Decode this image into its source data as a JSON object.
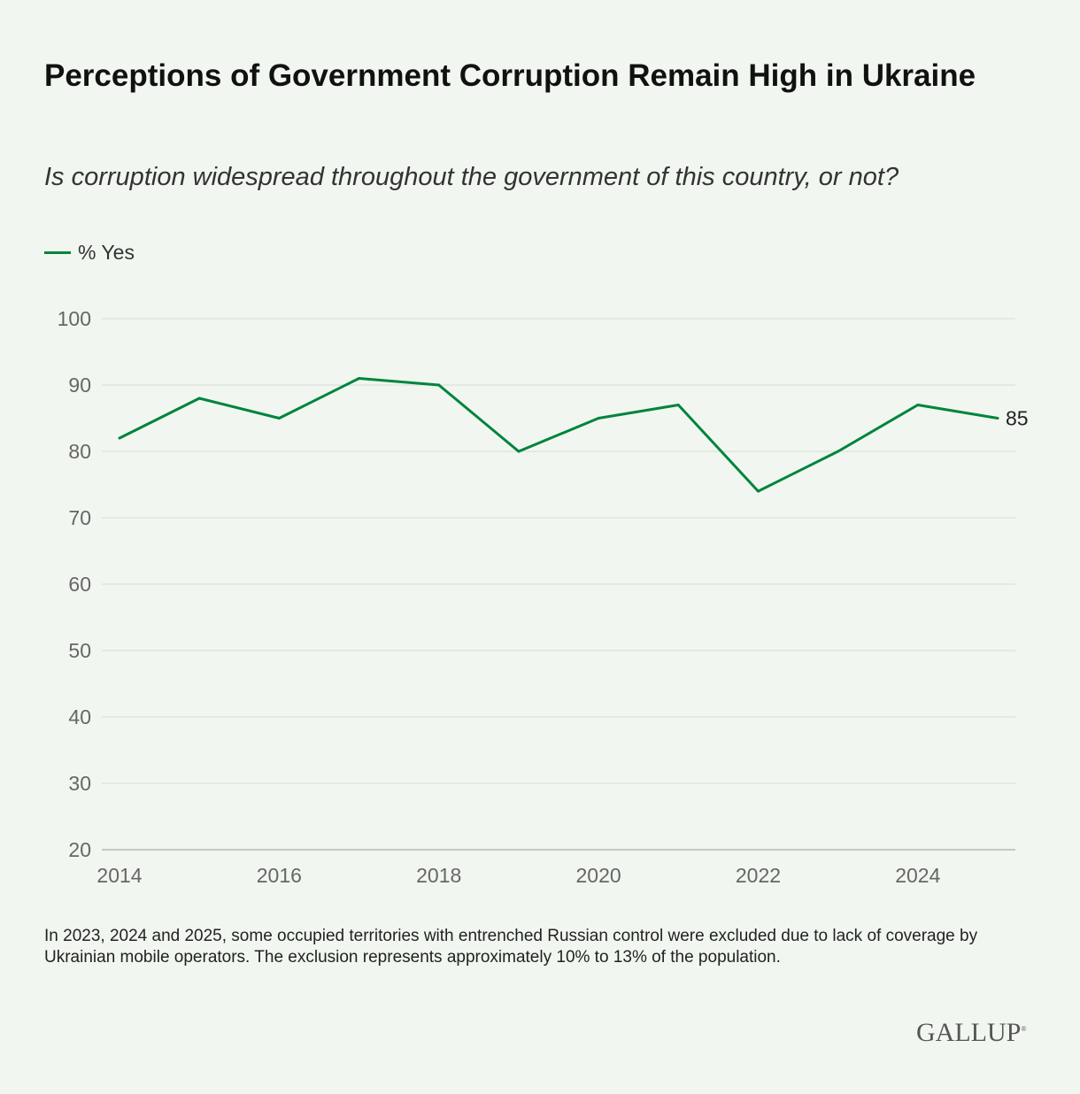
{
  "title": "Perceptions of Government Corruption Remain High in Ukraine",
  "subtitle": "Is corruption widespread throughout the government of this country, or not?",
  "footnote": "In 2023, 2024 and 2025, some occupied territories with entrenched Russian control were excluded due to lack of coverage by Ukrainian mobile operators. The exclusion represents approximately 10% to 13% of the population.",
  "logo": "GALLUP",
  "chart_data": {
    "type": "line",
    "x": [
      2014,
      2015,
      2016,
      2017,
      2018,
      2019,
      2020,
      2021,
      2022,
      2023,
      2024,
      2025
    ],
    "series": [
      {
        "name": "% Yes",
        "color": "#00843d",
        "values": [
          82,
          88,
          85,
          91,
          90,
          80,
          85,
          87,
          74,
          80,
          87,
          85
        ]
      }
    ],
    "end_label": "85",
    "ylim": [
      20,
      100
    ],
    "yticks": [
      20,
      30,
      40,
      50,
      60,
      70,
      80,
      90,
      100
    ],
    "xticks": [
      2014,
      2016,
      2018,
      2020,
      2022,
      2024
    ],
    "grid": true,
    "legend_position": "top-left"
  }
}
